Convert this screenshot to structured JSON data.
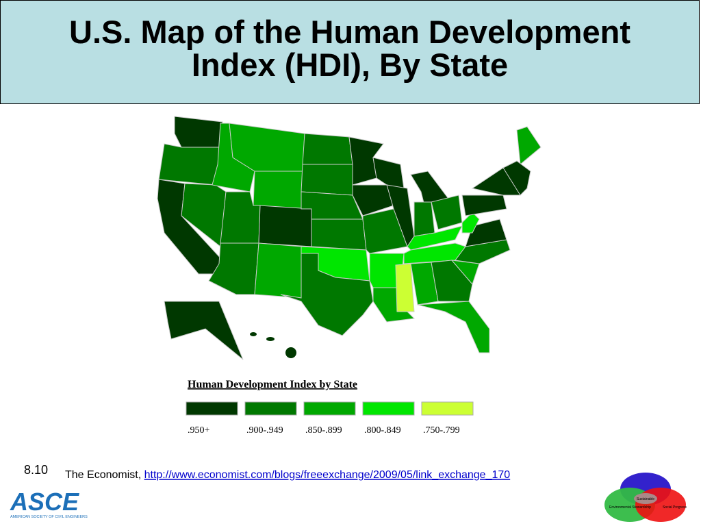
{
  "header": {
    "title_lines": [
      "U.S. Map of the Human Development",
      "Index (HDI), By State"
    ]
  },
  "legend": {
    "title": "Human Development Index by State",
    "items": [
      {
        "label": ".950+",
        "color": "#003800"
      },
      {
        "label": ".900-.949",
        "color": "#007800"
      },
      {
        "label": ".850-.899",
        "color": "#00a800"
      },
      {
        "label": ".800-.849",
        "color": "#00e600"
      },
      {
        "label": ".750-.799",
        "color": "#ccff33"
      }
    ]
  },
  "footer": {
    "slide_number": "8.10",
    "source": "The Economist, ",
    "link": "http://www.economist.com/blogs/freeexchange/2009/05/link_exchange_170",
    "logo": {
      "name": "ASCE",
      "subtitle": "AMERICAN SOCIETY OF CIVIL ENGINEERS"
    },
    "diagram": {
      "center": "Sustainable",
      "left": "Environmental Stewardship",
      "right": "Social Progress"
    }
  }
}
